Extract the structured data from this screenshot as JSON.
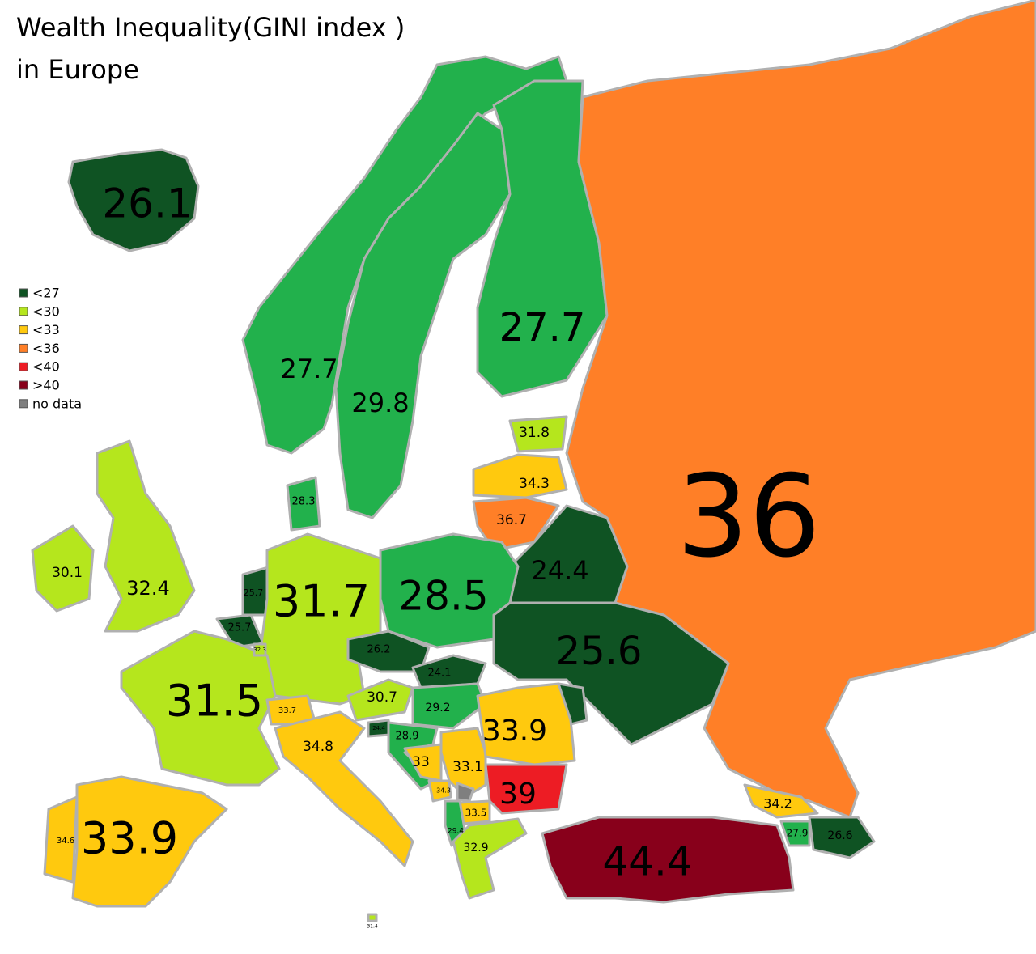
{
  "title": [
    "Wealth Inequality(GINI index )",
    "in Europe"
  ],
  "legend": [
    {
      "label": "<27",
      "color": "#0f5323"
    },
    {
      "label": "<30",
      "color": "#b5e61d"
    },
    {
      "label": "<33",
      "color": "#ffc90e"
    },
    {
      "label": "<36",
      "color": "#ff7f27"
    },
    {
      "label": "<40",
      "color": "#ed1c24"
    },
    {
      "label": ">40",
      "color": "#88001b"
    },
    {
      "label": "no data",
      "color": "#7f7f7f"
    }
  ],
  "regions": [
    {
      "value": 26.1,
      "color": "#0f5323"
    },
    {
      "value": 27.7,
      "color": "#22b14c"
    },
    {
      "value": 29.8,
      "color": "#22b14c"
    },
    {
      "value": 27.7,
      "color": "#22b14c"
    },
    {
      "value": 36,
      "color": "#ff7f27"
    },
    {
      "value": 31.8,
      "color": "#b5e61d"
    },
    {
      "value": 34.3,
      "color": "#ffc90e"
    },
    {
      "value": 36.7,
      "color": "#ff7f27"
    },
    {
      "value": 24.4,
      "color": "#0f5323"
    },
    {
      "value": 28.5,
      "color": "#22b14c"
    },
    {
      "value": 25.6,
      "color": "#0f5323"
    },
    {
      "color": "#0f5323"
    },
    {
      "value": 30.1,
      "color": "#b5e61d"
    },
    {
      "value": 32.4,
      "color": "#b5e61d"
    },
    {
      "value": 25.7,
      "color": "#0f5323"
    },
    {
      "value": 25.7,
      "color": "#0f5323"
    },
    {
      "value": 28.3,
      "color": "#22b14c"
    },
    {
      "value": 31.7,
      "color": "#b5e61d"
    },
    {
      "value": 31.5,
      "color": "#b5e61d"
    },
    {
      "value": 33.9,
      "color": "#ffc90e"
    },
    {
      "value": 34.6,
      "color": "#ffc90e"
    },
    {
      "value": 33.7,
      "color": "#ffc90e"
    },
    {
      "value": 34.8,
      "color": "#ffc90e"
    },
    {
      "value": 30.7,
      "color": "#b5e61d"
    },
    {
      "value": 26.2,
      "color": "#0f5323"
    },
    {
      "value": 24.1,
      "color": "#0f5323"
    },
    {
      "value": 29.2,
      "color": "#22b14c"
    },
    {
      "value": 24.4,
      "color": "#0f5323"
    },
    {
      "value": 28.9,
      "color": "#22b14c"
    },
    {
      "value": 33,
      "color": "#ffc90e"
    },
    {
      "value": 33.1,
      "color": "#ffc90e"
    },
    {
      "value": 34.3,
      "color": "#ffc90e"
    },
    {
      "color": "#7f7f7f"
    },
    {
      "value": 33.5,
      "color": "#ffc90e"
    },
    {
      "value": 29.4,
      "color": "#22b14c"
    },
    {
      "value": 32.9,
      "color": "#b5e61d"
    },
    {
      "value": 33.9,
      "color": "#ffc90e"
    },
    {
      "value": 39,
      "color": "#ed1c24"
    },
    {
      "value": 44.4,
      "color": "#88001b"
    },
    {
      "value": 34.2,
      "color": "#ffc90e"
    },
    {
      "value": 27.9,
      "color": "#22b14c"
    },
    {
      "value": 26.6,
      "color": "#0f5323"
    },
    {
      "value": 32.3,
      "color": "#b5e61d"
    },
    {
      "value": 31.4,
      "color": "#b5e61d"
    }
  ]
}
